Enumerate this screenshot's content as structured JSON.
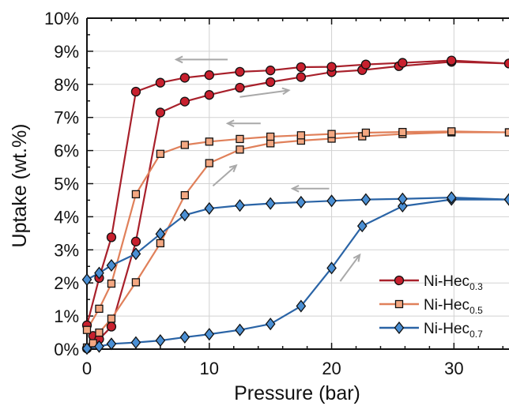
{
  "chart_data": {
    "type": "line",
    "xlabel": "Pressure (bar)",
    "ylabel": "Uptake (wt.%)",
    "xlim": [
      0,
      34.5
    ],
    "ylim": [
      0,
      10
    ],
    "x_ticks": [
      0,
      10,
      20,
      30
    ],
    "x_tick_labels": [
      "0",
      "10",
      "20",
      "30"
    ],
    "y_ticks": [
      0,
      1,
      2,
      3,
      4,
      5,
      6,
      7,
      8,
      9,
      10
    ],
    "y_tick_labels": [
      "0%",
      "1%",
      "2%",
      "3%",
      "4%",
      "5%",
      "6%",
      "7%",
      "8%",
      "9%",
      "10%"
    ],
    "grid": true,
    "legend_position": "bottom-right",
    "series": [
      {
        "name": "Ni-Hec",
        "subscript": "0.3",
        "color": "#a8202b",
        "fill": "#c8202e",
        "marker": "circle",
        "adsorption": {
          "x": [
            0,
            0.5,
            1,
            2,
            4,
            6,
            8,
            10,
            12.5,
            15,
            17.5,
            20,
            22.5,
            25.5,
            29.8,
            34.5
          ],
          "y": [
            0.02,
            0.4,
            0.3,
            0.68,
            3.25,
            7.15,
            7.48,
            7.68,
            7.9,
            8.07,
            8.22,
            8.37,
            8.43,
            8.55,
            8.68,
            8.63
          ]
        },
        "desorption": {
          "x": [
            34.5,
            29.8,
            25.8,
            22.8,
            20,
            17.5,
            15,
            12.5,
            10,
            8,
            6,
            4,
            2,
            1,
            0
          ],
          "y": [
            8.63,
            8.72,
            8.65,
            8.6,
            8.53,
            8.52,
            8.42,
            8.38,
            8.28,
            8.2,
            8.05,
            7.78,
            3.38,
            2.15,
            0.72
          ]
        }
      },
      {
        "name": "Ni-Hec",
        "subscript": "0.5",
        "color": "#e0805a",
        "fill": "#f4a882",
        "marker": "square",
        "adsorption": {
          "x": [
            0,
            0.5,
            1,
            2,
            4,
            6,
            8,
            10,
            12.5,
            15,
            17.5,
            20,
            22.5,
            25.8,
            29.8,
            34.5
          ],
          "y": [
            0.05,
            0.18,
            0.5,
            0.92,
            2.02,
            3.2,
            4.65,
            5.62,
            6.03,
            6.22,
            6.3,
            6.36,
            6.43,
            6.5,
            6.55,
            6.55
          ]
        },
        "desorption": {
          "x": [
            34.5,
            29.8,
            25.8,
            22.8,
            20,
            17.5,
            15,
            12.5,
            10,
            8,
            6,
            4,
            2,
            1,
            0
          ],
          "y": [
            6.55,
            6.58,
            6.56,
            6.54,
            6.5,
            6.46,
            6.42,
            6.35,
            6.27,
            6.17,
            5.9,
            4.68,
            1.98,
            1.22,
            0.58
          ]
        }
      },
      {
        "name": "Ni-Hec",
        "subscript": "0.7",
        "color": "#2a64a6",
        "fill": "#4a8fd4",
        "marker": "diamond",
        "adsorption": {
          "x": [
            0,
            1,
            2,
            4,
            6,
            8,
            10,
            12.5,
            15,
            17.5,
            20,
            22.5,
            25.8,
            29.8,
            34.5
          ],
          "y": [
            0.02,
            0.08,
            0.16,
            0.2,
            0.26,
            0.36,
            0.45,
            0.58,
            0.76,
            1.3,
            2.45,
            3.72,
            4.32,
            4.52,
            4.52
          ]
        },
        "desorption": {
          "x": [
            34.5,
            29.8,
            25.8,
            22.8,
            20,
            17.5,
            15,
            12.5,
            10,
            8,
            6,
            4,
            2,
            1,
            0
          ],
          "y": [
            4.52,
            4.58,
            4.54,
            4.52,
            4.48,
            4.44,
            4.4,
            4.34,
            4.25,
            4.05,
            3.48,
            2.88,
            2.53,
            2.3,
            2.1
          ]
        }
      }
    ],
    "arrows": [
      {
        "direction": "desorption",
        "from": [
          11.5,
          8.75
        ],
        "to": [
          7.3,
          8.75
        ]
      },
      {
        "direction": "adsorption",
        "from": [
          12.5,
          7.62
        ],
        "to": [
          16.5,
          7.82
        ]
      },
      {
        "direction": "desorption",
        "from": [
          14.2,
          6.82
        ],
        "to": [
          11.5,
          6.82
        ]
      },
      {
        "direction": "adsorption",
        "from": [
          10.3,
          4.93
        ],
        "to": [
          12.2,
          5.55
        ]
      },
      {
        "direction": "desorption",
        "from": [
          19.8,
          4.85
        ],
        "to": [
          16.8,
          4.85
        ]
      },
      {
        "direction": "adsorption",
        "from": [
          20.7,
          2.05
        ],
        "to": [
          22.3,
          2.85
        ]
      }
    ],
    "arrow_color": "#a9a9a9",
    "grid_color": "#d2d2d2"
  }
}
